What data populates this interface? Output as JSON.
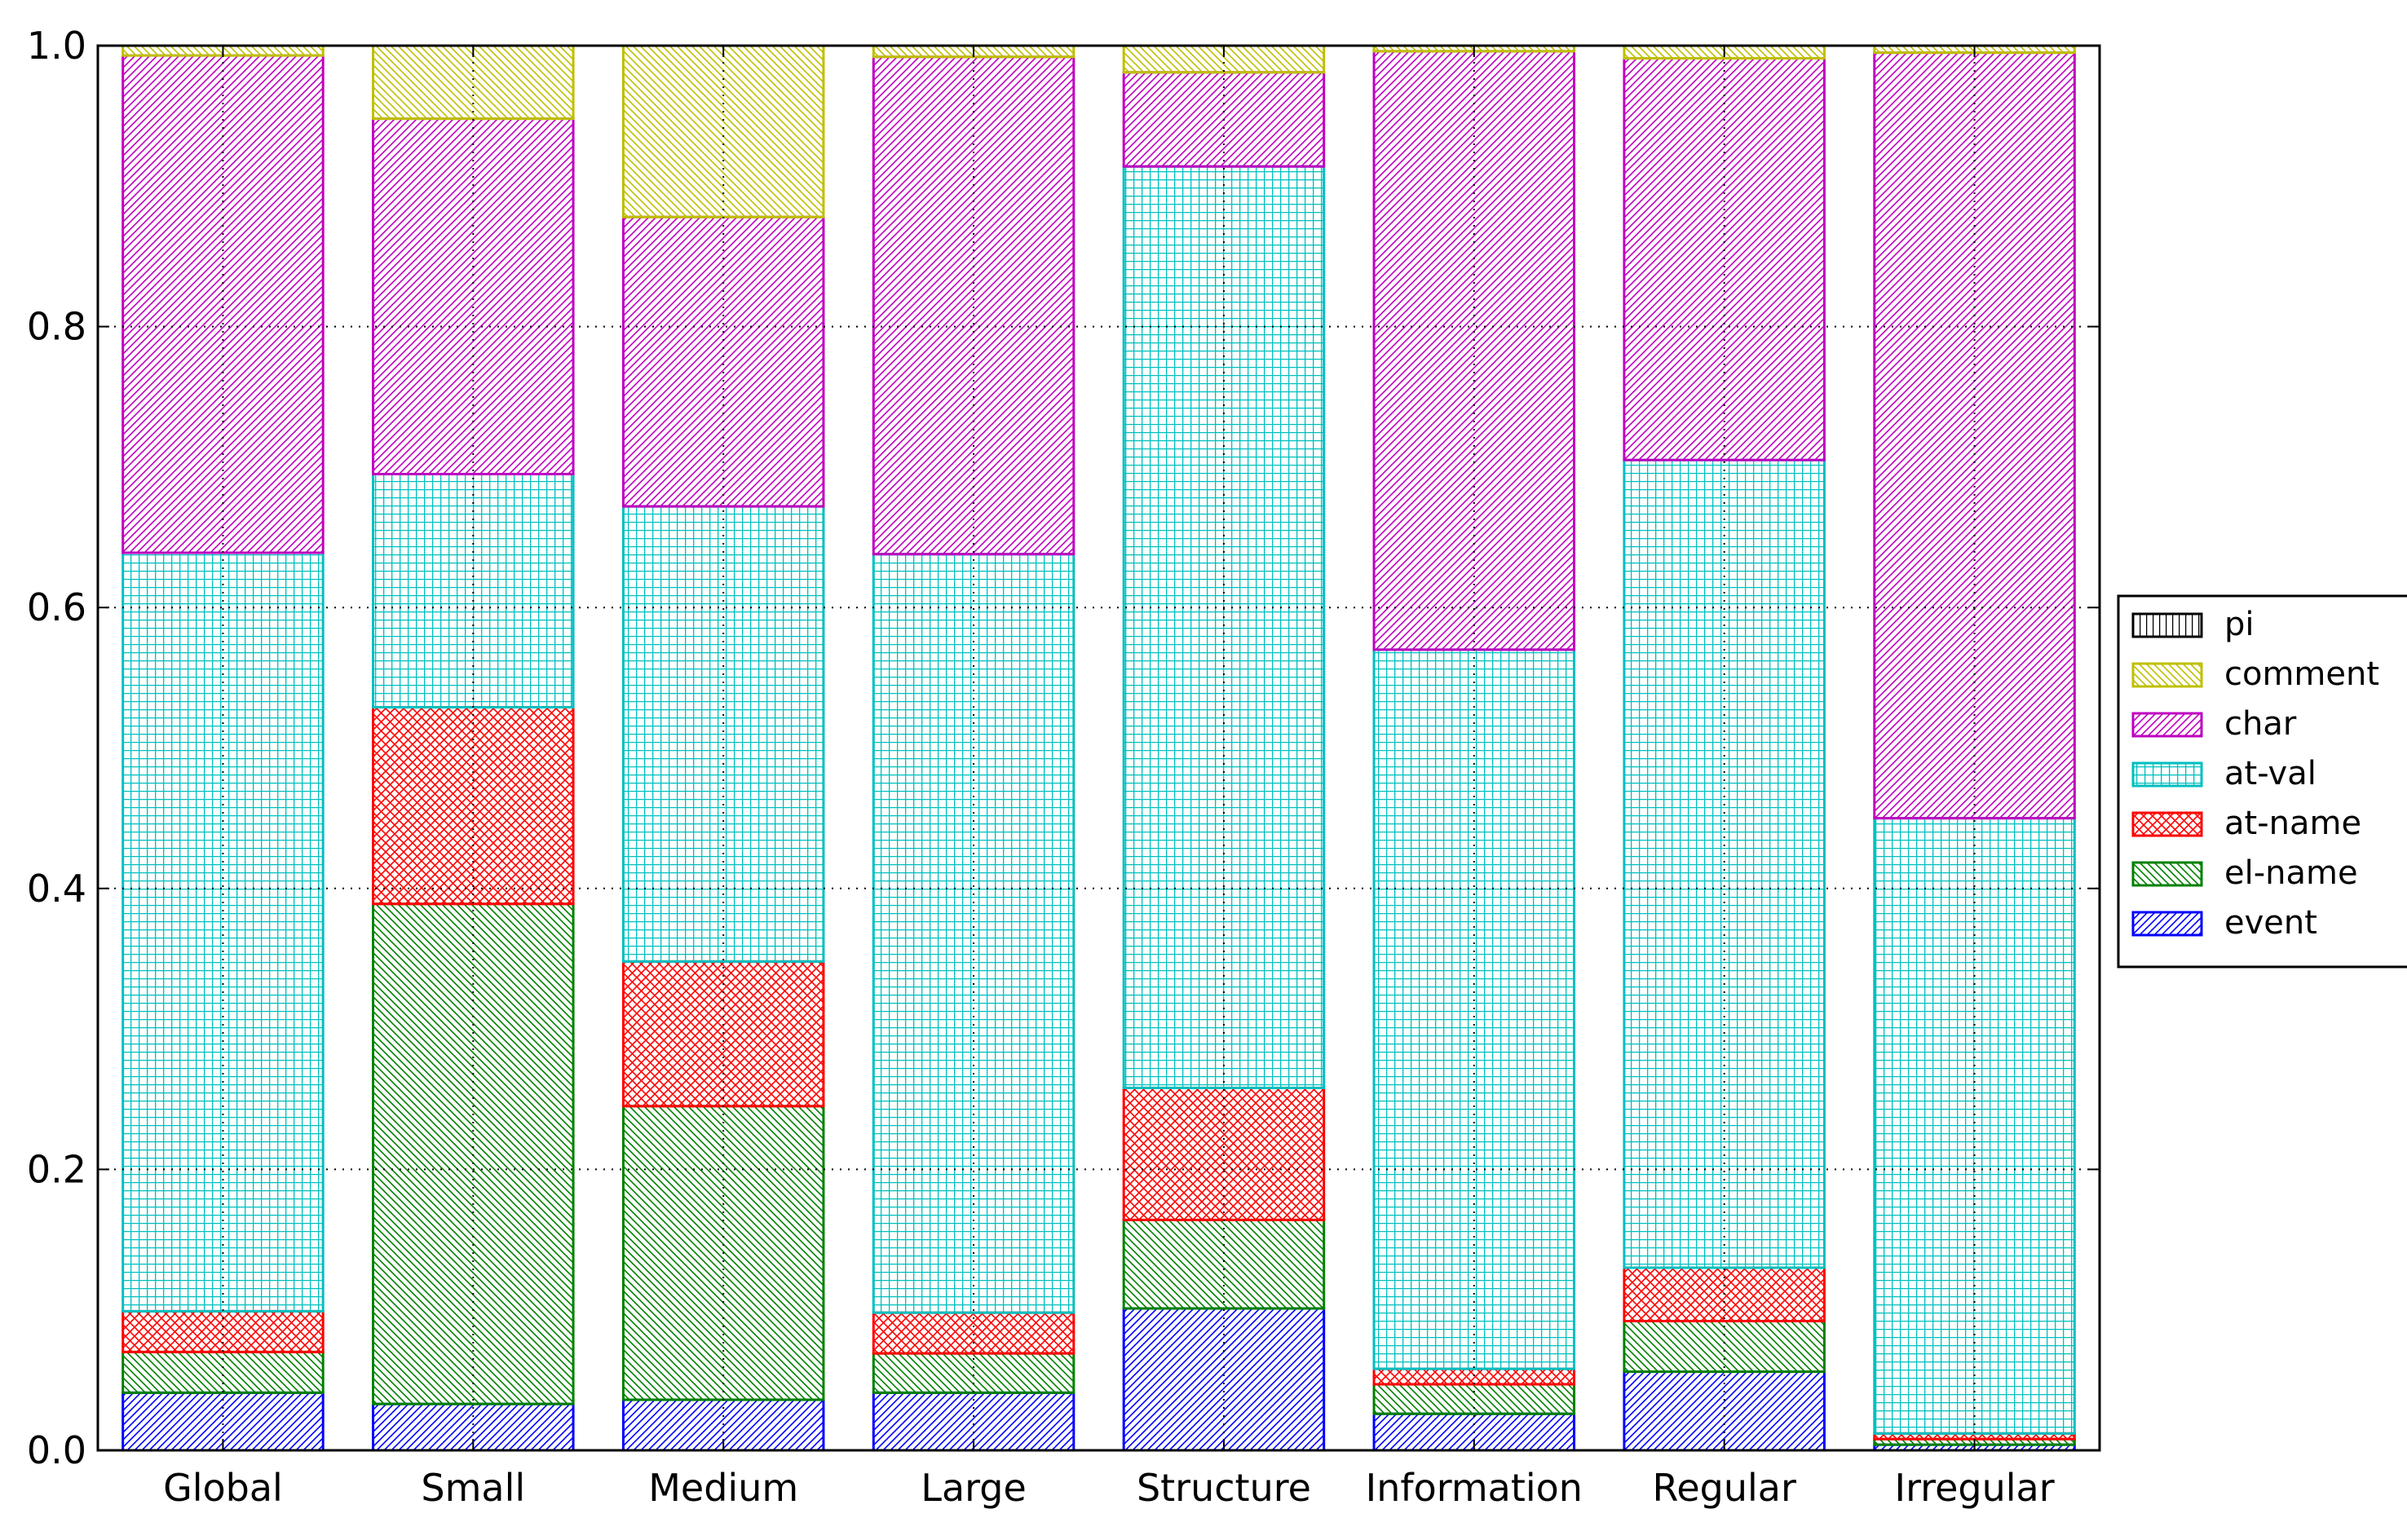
{
  "chart_data": {
    "type": "bar",
    "stacked": true,
    "title": "",
    "xlabel": "",
    "ylabel": "",
    "ylim": [
      0,
      1.0
    ],
    "yticks": [
      "0.0",
      "0.2",
      "0.4",
      "0.6",
      "0.8",
      "1.0"
    ],
    "grid": true,
    "legend_position": "right",
    "categories": [
      "Global",
      "Small",
      "Medium",
      "Large",
      "Structure",
      "Information",
      "Regular",
      "Irregular"
    ],
    "series": [
      {
        "name": "event",
        "color": "#0000ff",
        "hatch": "diag-fwd",
        "values": [
          0.041,
          0.033,
          0.036,
          0.041,
          0.101,
          0.026,
          0.056,
          0.004
        ]
      },
      {
        "name": "el-name",
        "color": "#008000",
        "hatch": "diag-back",
        "values": [
          0.029,
          0.356,
          0.209,
          0.028,
          0.063,
          0.021,
          0.036,
          0.004
        ]
      },
      {
        "name": "at-name",
        "color": "#ff0000",
        "hatch": "cross",
        "values": [
          0.029,
          0.14,
          0.103,
          0.029,
          0.094,
          0.011,
          0.038,
          0.004
        ]
      },
      {
        "name": "at-val",
        "color": "#00bfbf",
        "hatch": "grid",
        "values": [
          0.54,
          0.166,
          0.324,
          0.54,
          0.656,
          0.512,
          0.575,
          0.438
        ]
      },
      {
        "name": "char",
        "color": "#bf00bf",
        "hatch": "diag-fwd",
        "values": [
          0.354,
          0.253,
          0.206,
          0.354,
          0.067,
          0.426,
          0.286,
          0.545
        ]
      },
      {
        "name": "comment",
        "color": "#bfbf00",
        "hatch": "diag-back",
        "values": [
          0.007,
          0.052,
          0.122,
          0.008,
          0.019,
          0.004,
          0.009,
          0.005
        ]
      },
      {
        "name": "pi",
        "color": "#000000",
        "hatch": "vertical",
        "values": [
          0.0,
          0.0,
          0.0,
          0.0,
          0.0,
          0.0,
          0.0,
          0.0
        ]
      }
    ]
  }
}
